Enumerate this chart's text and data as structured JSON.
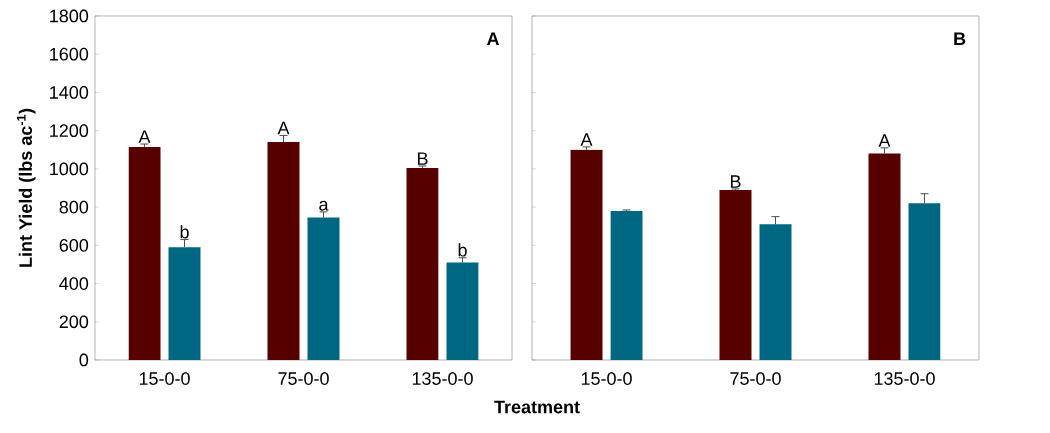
{
  "chart_data": [
    {
      "type": "bar",
      "ylabel": "Lint Yield (lbs ac$^{-1}$)",
      "xlabel": "Treatment",
      "categories": [
        "15-0-0",
        "75-0-0",
        "135-0-0"
      ],
      "series": [
        {
          "color": "#560000",
          "values": [
            1115,
            1140,
            1005
          ],
          "errors": [
            15,
            35,
            10
          ]
        },
        {
          "color": "#006782",
          "values": [
            590,
            745,
            510
          ],
          "errors": [
            40,
            30,
            25
          ]
        }
      ],
      "ylim": [
        0,
        1800
      ],
      "yticks": [
        0,
        200,
        400,
        600,
        800,
        1000,
        1200,
        1400,
        1600,
        1800
      ],
      "annotations": [
        "A",
        {
          "text": "A",
          "x": "15-0-0",
          "y": 1115
        },
        {
          "text": "A",
          "x": "75-0-0",
          "y": 1140
        },
        {
          "text": "B",
          "x": "135-0-0",
          "y": 1005
        },
        {
          "text": "b",
          "x": "15-0-0",
          "y": 590
        },
        {
          "text": "a",
          "x": "75-0-0",
          "y": 745
        },
        {
          "text": "b",
          "x": "135-0-0",
          "y": 510
        }
      ]
    },
    {
      "type": "bar",
      "categories": [
        "15-0-0",
        "75-0-0",
        "135-0-0"
      ],
      "series": [
        {
          "color": "#560000",
          "values": [
            1100,
            890,
            1080
          ],
          "errors": [
            15,
            5,
            30
          ]
        },
        {
          "color": "#006782",
          "values": [
            780,
            710,
            820
          ],
          "errors": [
            5,
            40,
            50
          ]
        }
      ],
      "ylim": [
        0,
        1800
      ],
      "yticks": [
        0,
        200,
        400,
        600,
        800,
        1000,
        1200,
        1400,
        1600,
        1800
      ],
      "tick_labels": "x",
      "annotations": [
        "B",
        {
          "text": "A",
          "x": "15-0-0",
          "y": 1100
        },
        {
          "text": "B",
          "x": "75-0-0",
          "y": 890
        },
        {
          "text": "A",
          "x": "135-0-0",
          "y": 1080
        }
      ]
    }
  ]
}
